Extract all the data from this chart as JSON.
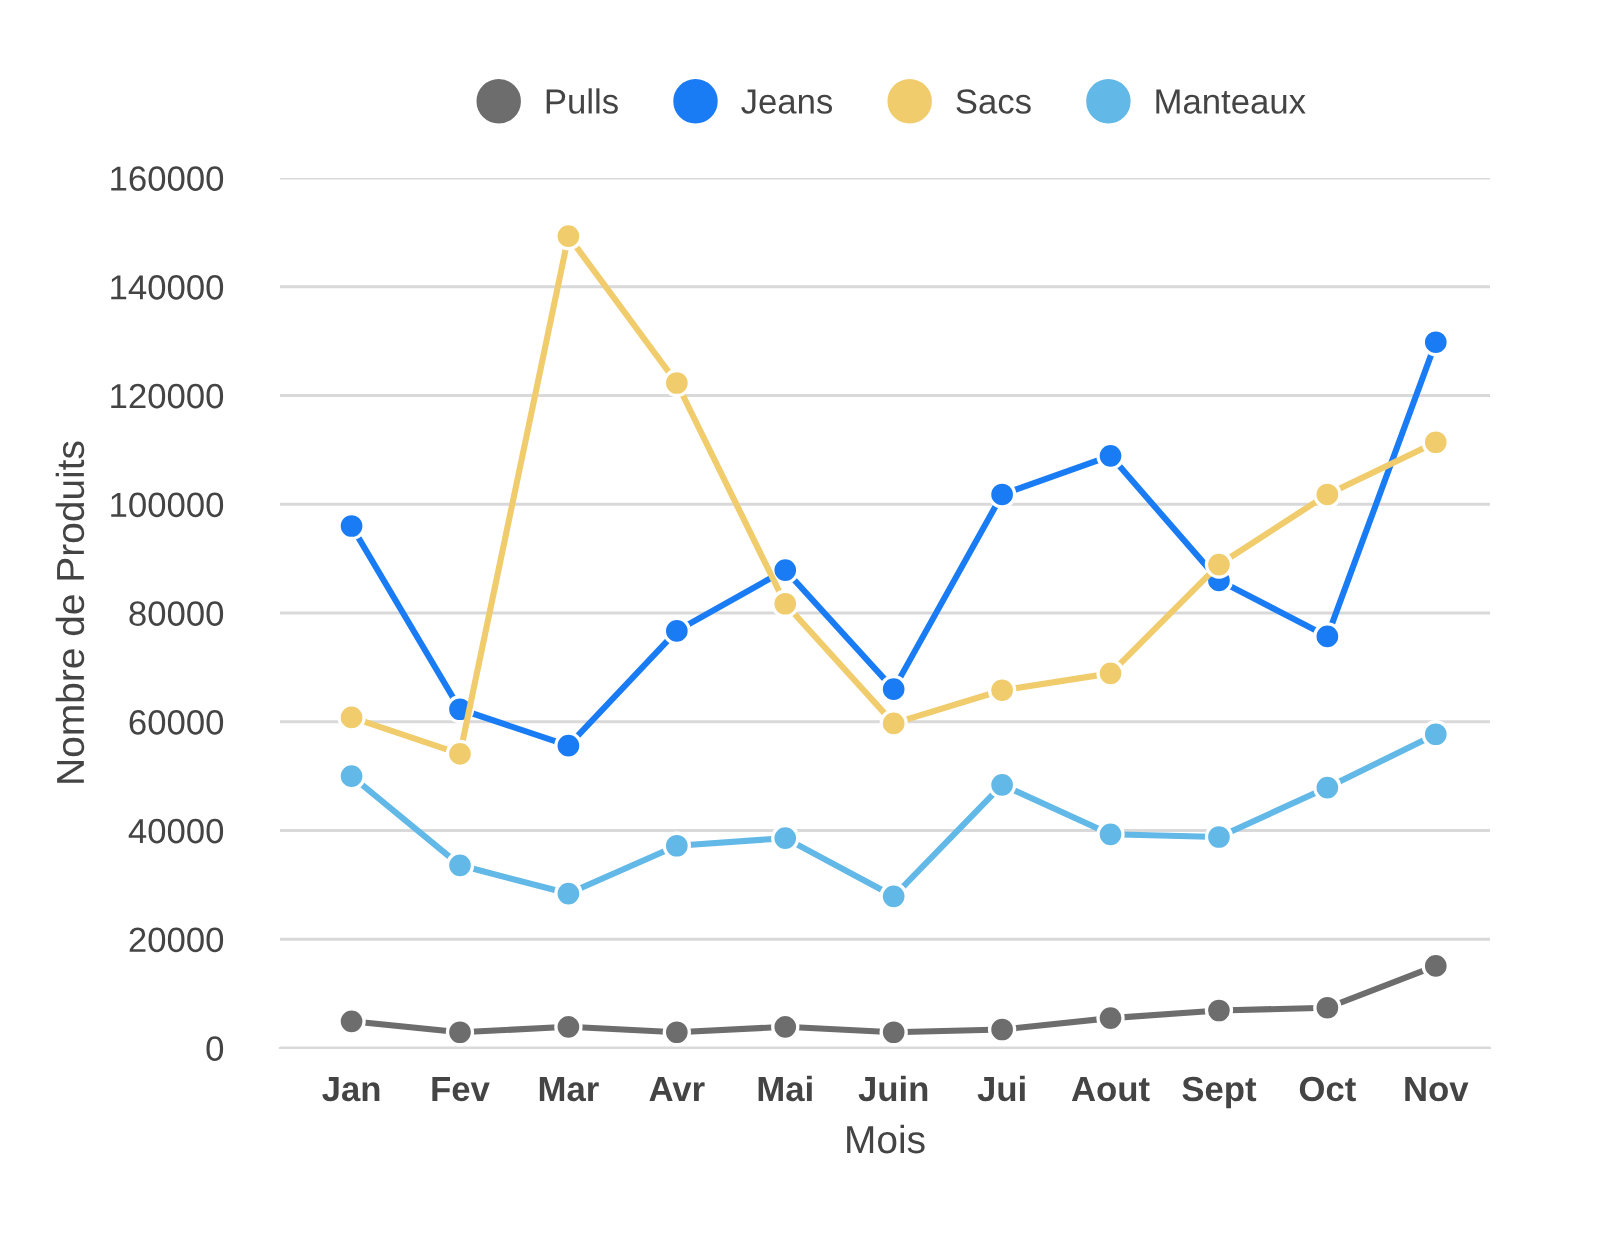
{
  "chart_data": {
    "type": "line",
    "xlabel": "Mois",
    "ylabel": "Nombre de Produits",
    "categories": [
      "Jan",
      "Fev",
      "Mar",
      "Avr",
      "Mai",
      "Juin",
      "Jui",
      "Aout",
      "Sept",
      "Oct",
      "Nov"
    ],
    "series": [
      {
        "name": "Pulls",
        "color": "#6d6d6d",
        "values": [
          4900,
          2900,
          3900,
          2900,
          3900,
          2900,
          3400,
          5500,
          6900,
          7400,
          15100
        ]
      },
      {
        "name": "Jeans",
        "color": "#1a7cf5",
        "values": [
          96000,
          62300,
          55600,
          76700,
          87900,
          66000,
          101800,
          108900,
          86000,
          75700,
          129800
        ]
      },
      {
        "name": "Sacs",
        "color": "#f0cc6c",
        "values": [
          60800,
          54100,
          149300,
          122300,
          81700,
          59700,
          65800,
          68900,
          88900,
          101800,
          111400
        ]
      },
      {
        "name": "Manteaux",
        "color": "#62b8e6",
        "values": [
          50000,
          33600,
          28400,
          37200,
          38600,
          27900,
          48400,
          39300,
          38800,
          47900,
          57700
        ]
      }
    ],
    "ylim": [
      0,
      160000
    ],
    "yticks": [
      0,
      20000,
      40000,
      60000,
      80000,
      100000,
      120000,
      140000,
      160000
    ],
    "grid": "y",
    "legend": "top",
    "marker": "circle",
    "line_style": "solid"
  }
}
